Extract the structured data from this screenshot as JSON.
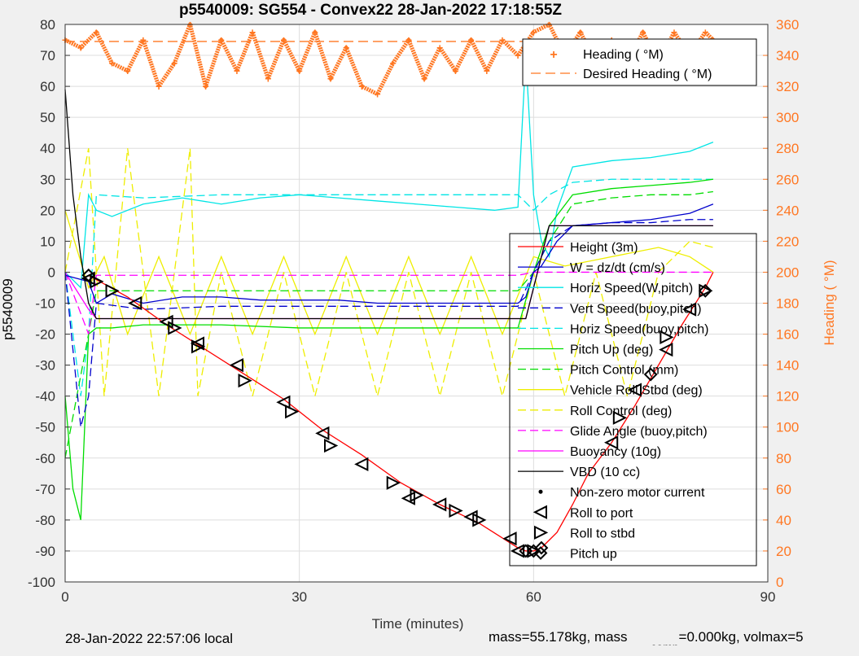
{
  "chart_data": {
    "type": "line",
    "title": "p5540009: SG554 - Convex22 28-Jan-2022 17:18:55Z",
    "xlabel": "Time (minutes)",
    "ylabel": "p5540009",
    "y2label": "Heading ( °M)",
    "xlim": [
      0,
      90
    ],
    "ylim": [
      -100,
      80
    ],
    "y2lim": [
      0,
      360
    ],
    "xticks": [
      "0",
      "30",
      "60",
      "90"
    ],
    "yticks": [
      "80",
      "70",
      "60",
      "50",
      "40",
      "30",
      "20",
      "10",
      "0",
      "-10",
      "-20",
      "-30",
      "-40",
      "-50",
      "-60",
      "-70",
      "-80",
      "-90",
      "-100"
    ],
    "y2ticks": [
      "360",
      "340",
      "320",
      "300",
      "280",
      "260",
      "240",
      "220",
      "200",
      "180",
      "160",
      "140",
      "120",
      "100",
      "80",
      "60",
      "40",
      "20",
      "0"
    ],
    "grid": true,
    "legend_top": {
      "placement": "top-right",
      "entries": [
        "Heading ( °M)",
        "Desired Heading ( °M)"
      ]
    },
    "legend_main": {
      "placement": "right",
      "entries": [
        "Height (3m)",
        "W = dz/dt (cm/s)",
        "Horiz Speed(W,pitch)",
        "Vert Speed(buoy,pitch)",
        "Horiz Speed(buoy,pitch)",
        "Pitch Up (deg)",
        "Pitch Control (mm)",
        "Vehicle Roll Stbd (deg)",
        "Roll Control (deg)",
        "Glide Angle (buoy,pitch)",
        "Buoyancy (10g)",
        "VBD (10 cc)",
        "Non-zero motor current",
        "Roll to port",
        "Roll to stbd",
        "Pitch up"
      ]
    },
    "colors": {
      "height": "#ff0000",
      "w": "#0000cc",
      "horiz": "#00e5e5",
      "pitch": "#00dd00",
      "roll": "#eeee00",
      "glide": "#ff00ff",
      "vbd": "#000000",
      "heading": "#ff7722"
    },
    "series": [
      {
        "name": "Height (3m)",
        "x": [
          3,
          8,
          13,
          18,
          23,
          28,
          33,
          38,
          43,
          48,
          53,
          58,
          59,
          60,
          61,
          63,
          65,
          67,
          70,
          73,
          76,
          79,
          82,
          83
        ],
        "y": [
          -1,
          -8,
          -17,
          -25,
          -33,
          -41,
          -51,
          -59,
          -68,
          -75,
          -81,
          -89,
          -90,
          -90,
          -89,
          -84,
          -75,
          -65,
          -55,
          -43,
          -30,
          -17,
          -5,
          0
        ]
      },
      {
        "name": "W = dz/dt (cm/s)",
        "x": [
          0,
          3,
          4,
          6,
          10,
          15,
          20,
          25,
          30,
          35,
          40,
          45,
          50,
          55,
          58,
          59,
          60,
          61,
          62,
          63,
          65,
          70,
          75,
          80,
          83
        ],
        "y": [
          -1,
          -3,
          -10,
          -7,
          -10,
          -8,
          -8,
          -9,
          -9,
          -9,
          -10,
          -10,
          -10,
          -10,
          -10,
          -8,
          0,
          2,
          6,
          10,
          15,
          16,
          17,
          19,
          22
        ]
      },
      {
        "name": "Horiz Speed(W,pitch)",
        "x": [
          0,
          2,
          3,
          4,
          6,
          10,
          15,
          20,
          25,
          30,
          35,
          40,
          45,
          50,
          55,
          58,
          59,
          60,
          61,
          62,
          63,
          65,
          70,
          75,
          80,
          83
        ],
        "y": [
          0,
          -5,
          25,
          20,
          18,
          22,
          24,
          22,
          24,
          25,
          24,
          23,
          22,
          21,
          20,
          21,
          70,
          25,
          10,
          5,
          20,
          34,
          36,
          37,
          39,
          42
        ]
      },
      {
        "name": "Vert Speed(buoy,pitch)",
        "x": [
          0,
          2,
          3,
          4,
          10,
          20,
          30,
          40,
          50,
          58,
          60,
          62,
          65,
          70,
          75,
          80,
          83
        ],
        "y": [
          0,
          -50,
          -40,
          -10,
          -12,
          -11,
          -11,
          -11,
          -11,
          -11,
          0,
          10,
          15,
          16,
          16,
          17,
          17
        ]
      },
      {
        "name": "Horiz Speed(buoy,pitch)",
        "x": [
          0,
          2,
          3,
          4,
          10,
          20,
          30,
          40,
          50,
          58,
          60,
          62,
          65,
          70,
          75,
          80,
          83
        ],
        "y": [
          0,
          -40,
          -20,
          25,
          24,
          25,
          25,
          25,
          25,
          25,
          20,
          25,
          29,
          30,
          30,
          30,
          30
        ]
      },
      {
        "name": "Pitch Up (deg)",
        "x": [
          0,
          1,
          2,
          3,
          4,
          6,
          10,
          20,
          30,
          40,
          50,
          58,
          60,
          62,
          65,
          70,
          75,
          80,
          83
        ],
        "y": [
          -40,
          -70,
          -80,
          -20,
          -18,
          -18,
          -17,
          -17,
          -18,
          -18,
          -18,
          -18,
          0,
          15,
          25,
          27,
          28,
          29,
          30
        ]
      },
      {
        "name": "Pitch Control (mm)",
        "x": [
          0,
          3,
          4,
          10,
          20,
          30,
          40,
          50,
          58,
          60,
          62,
          65,
          70,
          75,
          80,
          83
        ],
        "y": [
          -60,
          -20,
          -6,
          -6,
          -6,
          -6,
          -6,
          -6,
          -6,
          0,
          10,
          22,
          24,
          25,
          25,
          26
        ]
      },
      {
        "name": "Vehicle Roll Stbd (deg)",
        "x": [
          0,
          3,
          5,
          8,
          12,
          16,
          20,
          24,
          28,
          32,
          36,
          40,
          44,
          48,
          52,
          56,
          60,
          64,
          68,
          72,
          76,
          80,
          83
        ],
        "y": [
          20,
          -5,
          5,
          -20,
          5,
          -20,
          5,
          -20,
          5,
          -20,
          5,
          -20,
          5,
          -20,
          5,
          -20,
          5,
          2,
          4,
          6,
          8,
          5,
          0
        ]
      },
      {
        "name": "Roll Control (deg)",
        "x": [
          0,
          3,
          5,
          8,
          12,
          16,
          17,
          20,
          24,
          28,
          32,
          36,
          40,
          44,
          48,
          52,
          56,
          60,
          64,
          68,
          72,
          76,
          80,
          83
        ],
        "y": [
          0,
          40,
          -40,
          40,
          -40,
          40,
          -40,
          0,
          -40,
          0,
          -40,
          0,
          -40,
          0,
          -40,
          0,
          -40,
          0,
          -40,
          0,
          -40,
          0,
          10,
          8
        ]
      },
      {
        "name": "Glide Angle (buoy,pitch)",
        "x": [
          0,
          3,
          4,
          10,
          20,
          30,
          40,
          50,
          58,
          60,
          62,
          65,
          70,
          80,
          83
        ],
        "y": [
          0,
          -20,
          -1,
          -1,
          -1,
          -1,
          -1,
          -1,
          -1,
          0,
          0,
          0,
          0,
          0,
          0
        ]
      },
      {
        "name": "Buoyancy (10g)",
        "x": [
          0,
          3,
          4,
          58,
          59,
          62,
          63,
          83
        ],
        "y": [
          0,
          -12,
          -15,
          -15,
          -15,
          15,
          15,
          15
        ]
      },
      {
        "name": "VBD (10 cc)",
        "x": [
          0,
          1,
          2,
          3,
          4,
          58,
          59,
          62,
          63,
          83
        ],
        "y": [
          59,
          25,
          5,
          -10,
          -15,
          -15,
          -15,
          15,
          15,
          15
        ]
      }
    ],
    "heading": {
      "name": "Heading ( °M)",
      "x": [
        0,
        2,
        4,
        6,
        8,
        10,
        12,
        14,
        16,
        18,
        20,
        22,
        24,
        26,
        28,
        30,
        32,
        34,
        36,
        38,
        40,
        42,
        44,
        46,
        48,
        50,
        52,
        54,
        56,
        58,
        60,
        62,
        64,
        66,
        68,
        70,
        72,
        74,
        76,
        78,
        80,
        82,
        83
      ],
      "y": [
        350,
        345,
        355,
        335,
        330,
        350,
        320,
        335,
        360,
        320,
        350,
        330,
        355,
        325,
        350,
        330,
        355,
        325,
        345,
        320,
        315,
        335,
        350,
        325,
        345,
        330,
        350,
        330,
        350,
        340,
        355,
        360,
        340,
        355,
        335,
        350,
        335,
        355,
        335,
        355,
        340,
        355,
        350
      ]
    },
    "desired_heading": {
      "name": "Desired Heading ( °M)",
      "x": [
        0,
        83
      ],
      "y": [
        349,
        349
      ]
    },
    "roll_to_port": {
      "x": [
        3,
        9,
        13,
        17,
        22,
        28,
        33,
        38,
        44,
        48,
        52,
        57,
        58,
        70,
        73,
        77,
        80
      ],
      "y": [
        -2,
        -10,
        -16,
        -23,
        -30,
        -42,
        -52,
        -62,
        -73,
        -75,
        -79,
        -86,
        -90,
        -55,
        -38,
        -25,
        -12
      ]
    },
    "roll_to_stbd": {
      "x": [
        4,
        6,
        14,
        17,
        23,
        29,
        34,
        42,
        45,
        50,
        53,
        60,
        71,
        77,
        82
      ],
      "y": [
        -3,
        -6,
        -18,
        -24,
        -35,
        -45,
        -56,
        -68,
        -72,
        -77,
        -80,
        -90,
        -47,
        -21,
        -6
      ]
    },
    "pitch_up": {
      "x": [
        3,
        59,
        60,
        61,
        75,
        82
      ],
      "y": [
        -1,
        -90,
        -90,
        -89,
        -33,
        -6
      ]
    }
  },
  "footer": {
    "local_time": "28-Jan-2022 22:57:06 local",
    "mass": "mass=55.178kg, mass",
    "sub": "comp",
    "rest": "=0.000kg, volmax=5"
  }
}
